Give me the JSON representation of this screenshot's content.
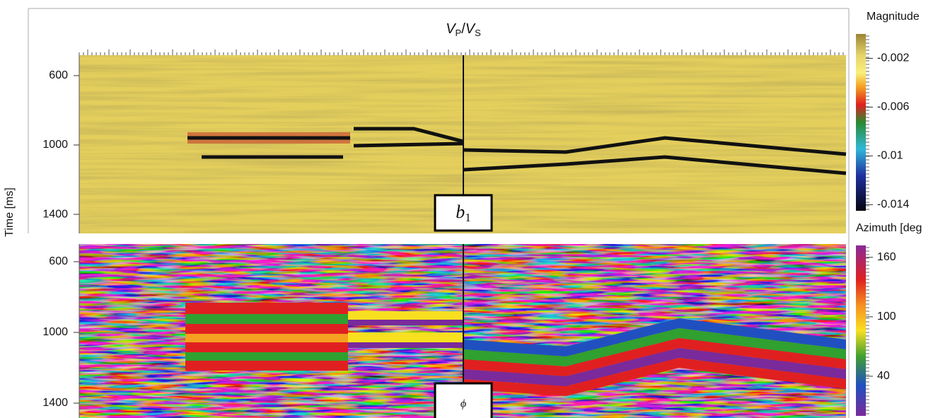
{
  "figure": {
    "title": {
      "v1": "V",
      "s1": "P",
      "sep": "/",
      "v2": "V",
      "s2": "S"
    },
    "y_label": "Time [ms]",
    "panels": [
      {
        "label": "b",
        "label_sub": "1",
        "ylim": [
          482,
          1510
        ],
        "yticks": [
          600,
          1000,
          1400
        ],
        "colorbar": {
          "title": "Magnitude",
          "ylim": [
            0,
            -0.0145
          ],
          "ticks": [
            -0.002,
            -0.006,
            -0.01,
            -0.014
          ]
        }
      },
      {
        "label": "ϕ",
        "ylim": [
          500,
          1484
        ],
        "yticks": [
          600,
          1000,
          1400
        ],
        "colorbar": {
          "title": "Azimuth [deg",
          "ylim": [
            172,
            0
          ],
          "ticks": [
            160,
            100,
            40
          ]
        }
      }
    ]
  }
}
